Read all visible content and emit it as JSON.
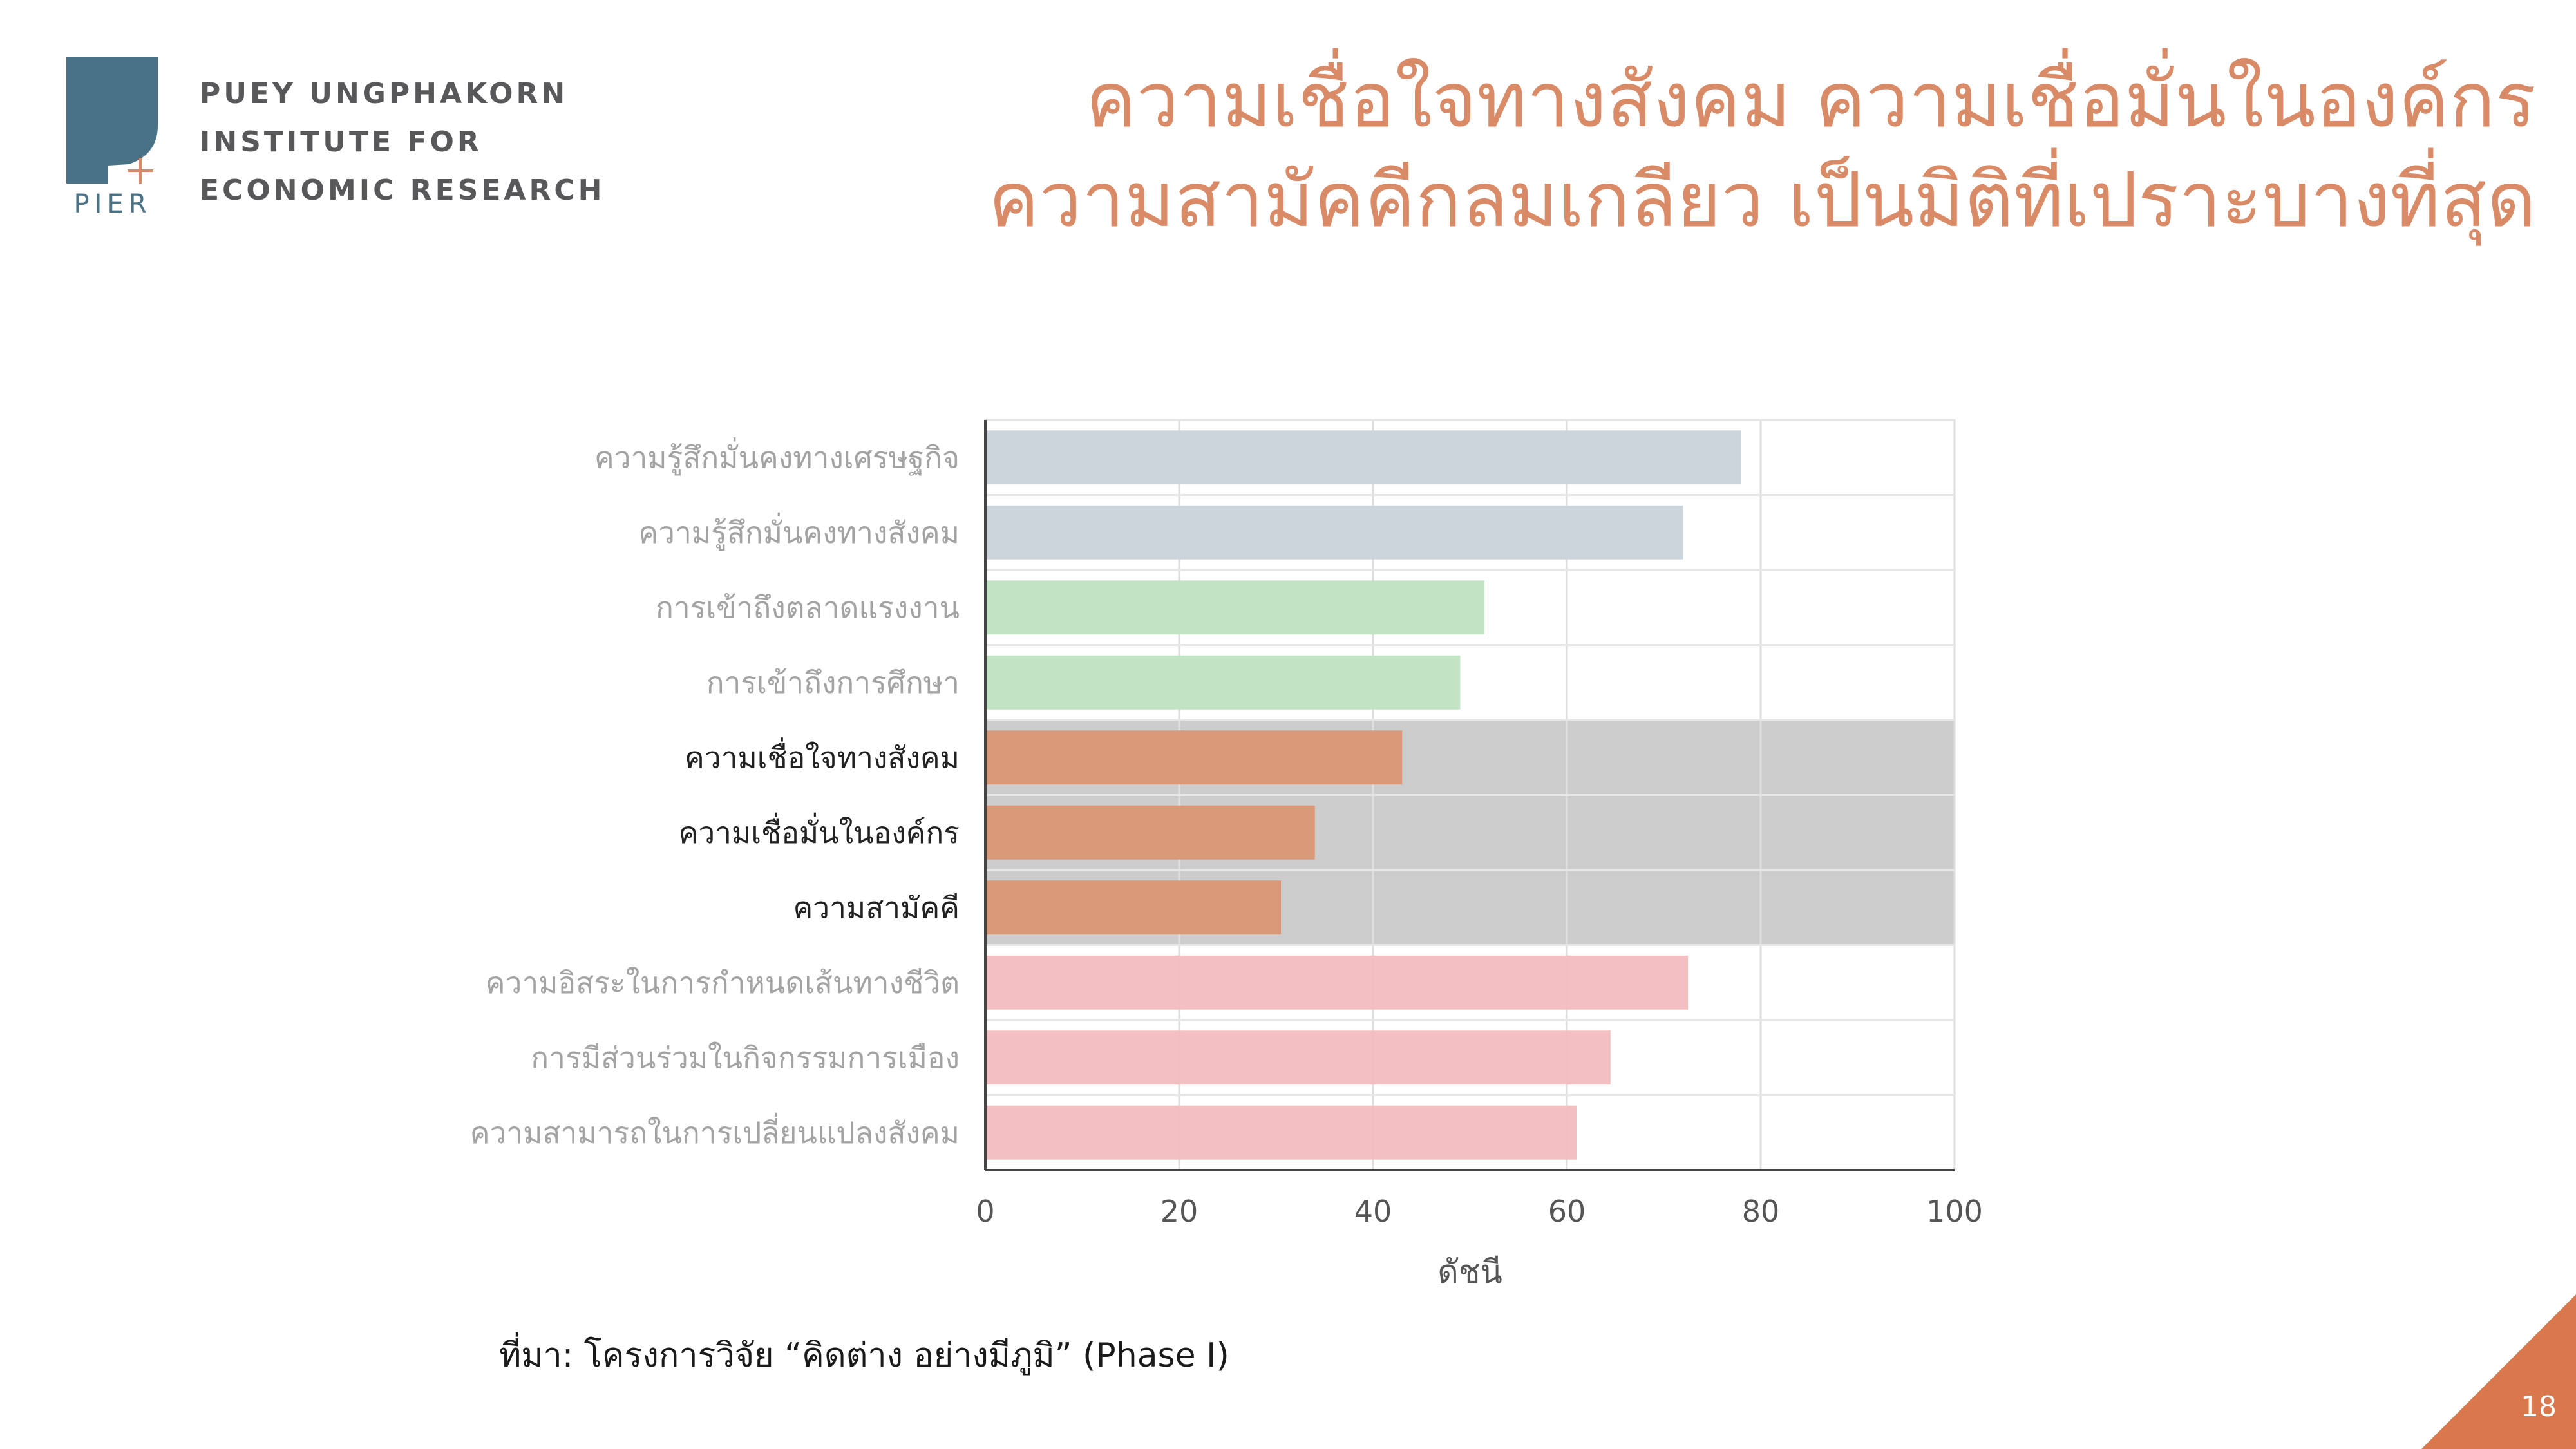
{
  "org": {
    "logo_text": "PIER",
    "name_lines": [
      "PUEY UNGPHAKORN",
      "INSTITUTE FOR",
      "ECONOMIC RESEARCH"
    ]
  },
  "slide": {
    "title_lines": [
      "ความเชื่อใจทางสังคม ความเชื่อมั่นในองค์กร",
      "ความสามัคคีกลมเกลียว เป็นมิติที่เปราะบางที่สุด"
    ],
    "source": "ที่มา: โครงการวิจัย “คิดต่าง อย่างมีภูมิ” (Phase I)",
    "page_number": "18"
  },
  "colors": {
    "accent": "#d98a66",
    "logo_blue": "#4a7286",
    "bar_gray": "#c9d3da",
    "bar_green": "#c0e3c1",
    "bar_orange": "#d99573",
    "bar_pink": "#f2bcbe",
    "highlight_band": "#cccccc"
  },
  "chart_data": {
    "type": "bar",
    "orientation": "horizontal",
    "categories": [
      "ความรู้สึกมั่นคงทางเศรษฐกิจ",
      "ความรู้สึกมั่นคงทางสังคม",
      "การเข้าถึงตลาดแรงงาน",
      "การเข้าถึงการศึกษา",
      "ความเชื่อใจทางสังคม",
      "ความเชื่อมั่นในองค์กร",
      "ความสามัคคี",
      "ความอิสระในการกำหนดเส้นทางชีวิต",
      "การมีส่วนร่วมในกิจกรรมการเมือง",
      "ความสามารถในการเปลี่ยนแปลงสังคม"
    ],
    "values": [
      78,
      72,
      51.5,
      49,
      43,
      34,
      30.5,
      72.5,
      64.5,
      61
    ],
    "groups": [
      "gray",
      "gray",
      "green",
      "green",
      "orange",
      "orange",
      "orange",
      "pink",
      "pink",
      "pink"
    ],
    "highlighted_categories": [
      "ความเชื่อใจทางสังคม",
      "ความเชื่อมั่นในองค์กร",
      "ความสามัคคี"
    ],
    "xlabel": "ดัชนี",
    "ylabel": "",
    "xlim": [
      0,
      100
    ],
    "xticks": [
      0,
      20,
      40,
      60,
      80,
      100
    ],
    "grid": true
  }
}
